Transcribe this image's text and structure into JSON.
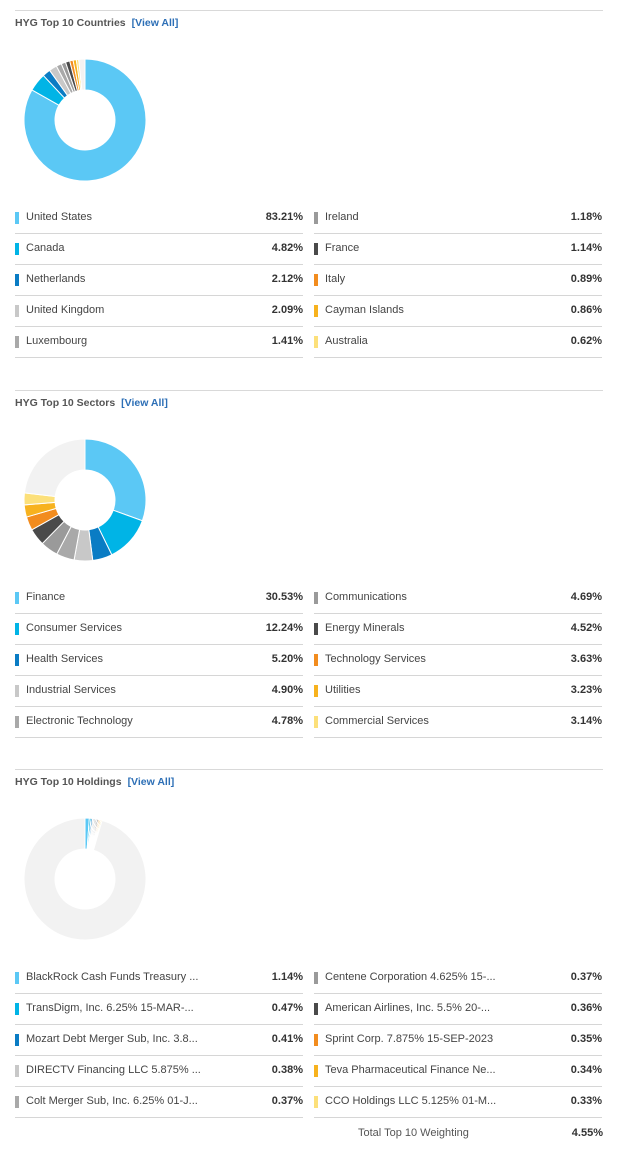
{
  "colors": [
    "#5bc8f5",
    "#00b4e6",
    "#0a7cc4",
    "#c8c8c8",
    "#a9a9a9",
    "#9a9a9a",
    "#4a4a4a",
    "#f28c1e",
    "#f7b21e",
    "#fce07a"
  ],
  "remainder_color": "#f2f2f2",
  "view_all": "[View All]",
  "countries": {
    "title": "HYG Top 10 Countries",
    "items": [
      {
        "label": "United States",
        "value": "83.21%",
        "v": 83.21
      },
      {
        "label": "Canada",
        "value": "4.82%",
        "v": 4.82
      },
      {
        "label": "Netherlands",
        "value": "2.12%",
        "v": 2.12
      },
      {
        "label": "United Kingdom",
        "value": "2.09%",
        "v": 2.09
      },
      {
        "label": "Luxembourg",
        "value": "1.41%",
        "v": 1.41
      },
      {
        "label": "Ireland",
        "value": "1.18%",
        "v": 1.18
      },
      {
        "label": "France",
        "value": "1.14%",
        "v": 1.14
      },
      {
        "label": "Italy",
        "value": "0.89%",
        "v": 0.89
      },
      {
        "label": "Cayman Islands",
        "value": "0.86%",
        "v": 0.86
      },
      {
        "label": "Australia",
        "value": "0.62%",
        "v": 0.62
      }
    ]
  },
  "sectors": {
    "title": "HYG Top 10 Sectors",
    "items": [
      {
        "label": "Finance",
        "value": "30.53%",
        "v": 30.53
      },
      {
        "label": "Consumer Services",
        "value": "12.24%",
        "v": 12.24
      },
      {
        "label": "Health Services",
        "value": "5.20%",
        "v": 5.2
      },
      {
        "label": "Industrial Services",
        "value": "4.90%",
        "v": 4.9
      },
      {
        "label": "Electronic Technology",
        "value": "4.78%",
        "v": 4.78
      },
      {
        "label": "Communications",
        "value": "4.69%",
        "v": 4.69
      },
      {
        "label": "Energy Minerals",
        "value": "4.52%",
        "v": 4.52
      },
      {
        "label": "Technology Services",
        "value": "3.63%",
        "v": 3.63
      },
      {
        "label": "Utilities",
        "value": "3.23%",
        "v": 3.23
      },
      {
        "label": "Commercial Services",
        "value": "3.14%",
        "v": 3.14
      }
    ]
  },
  "holdings": {
    "title": "HYG Top 10 Holdings",
    "items": [
      {
        "label": "BlackRock Cash Funds Treasury ...",
        "value": "1.14%",
        "v": 1.14
      },
      {
        "label": "TransDigm, Inc. 6.25% 15-MAR-...",
        "value": "0.47%",
        "v": 0.47
      },
      {
        "label": "Mozart Debt Merger Sub, Inc. 3.8...",
        "value": "0.41%",
        "v": 0.41
      },
      {
        "label": "DIRECTV Financing LLC 5.875% ...",
        "value": "0.38%",
        "v": 0.38
      },
      {
        "label": "Colt Merger Sub, Inc. 6.25% 01-J...",
        "value": "0.37%",
        "v": 0.37
      },
      {
        "label": "Centene Corporation 4.625% 15-...",
        "value": "0.37%",
        "v": 0.37
      },
      {
        "label": "American Airlines, Inc. 5.5% 20-...",
        "value": "0.36%",
        "v": 0.36
      },
      {
        "label": "Sprint Corp. 7.875% 15-SEP-2023",
        "value": "0.35%",
        "v": 0.35
      },
      {
        "label": "Teva Pharmaceutical Finance Ne...",
        "value": "0.34%",
        "v": 0.34
      },
      {
        "label": "CCO Holdings LLC 5.125% 01-M...",
        "value": "0.33%",
        "v": 0.33
      }
    ],
    "total_label": "Total Top 10 Weighting",
    "total_value": "4.55%"
  }
}
